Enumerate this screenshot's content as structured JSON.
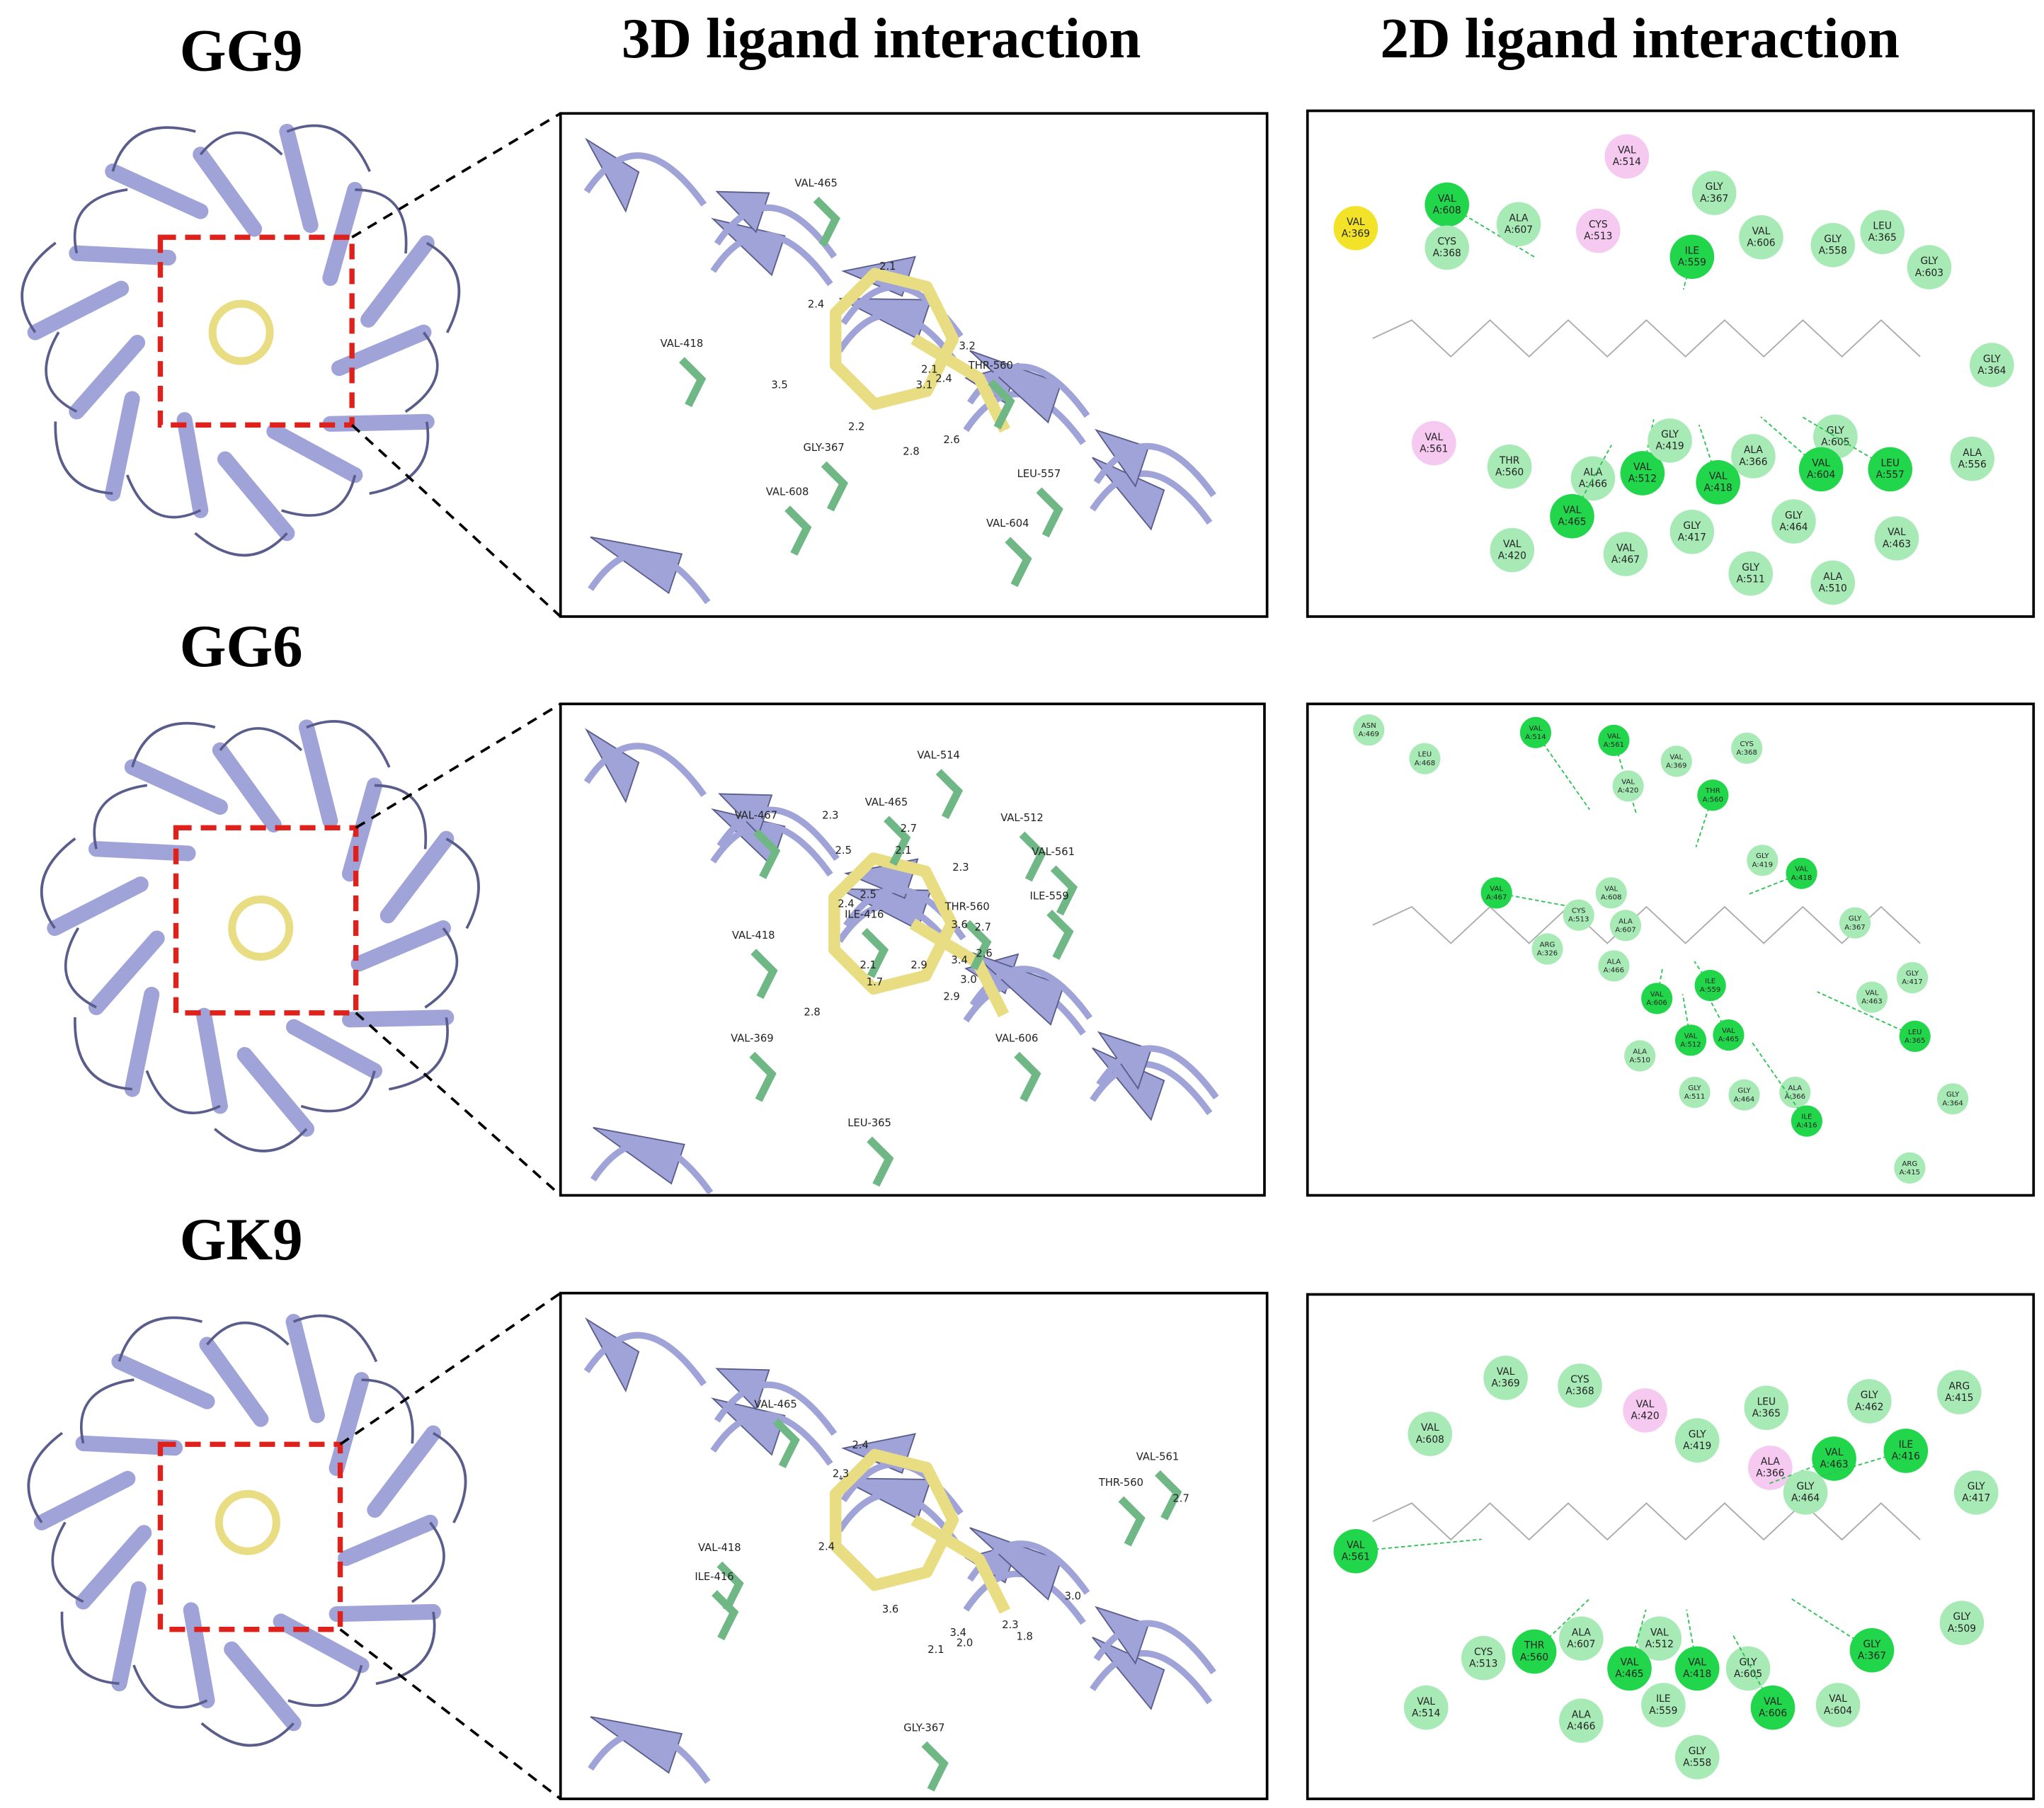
{
  "headers": [
    "3D ligand interaction",
    "2D ligand interaction"
  ],
  "rows": [
    {
      "label": "GG9",
      "residues_3d": [
        "VAL-465",
        "VAL-418",
        "THR-560",
        "GLY-367",
        "VAL-608",
        "LEU-557",
        "VAL-604"
      ],
      "distances_3d": [
        "2.1",
        "2.4",
        "3.2",
        "2.1",
        "2.4",
        "3.1",
        "3.5",
        "2.2",
        "2.6",
        "2.8"
      ],
      "residues_2d": [
        {
          "res": "VAL",
          "pos": "A:369",
          "color": "#f2e329"
        },
        {
          "res": "VAL",
          "pos": "A:608",
          "color": "#22d64c"
        },
        {
          "res": "CYS",
          "pos": "A:368",
          "color": "#a8eab6"
        },
        {
          "res": "ALA",
          "pos": "A:607",
          "color": "#a8eab6"
        },
        {
          "res": "VAL",
          "pos": "A:514",
          "color": "#f6c9f0"
        },
        {
          "res": "CYS",
          "pos": "A:513",
          "color": "#f6c9f0"
        },
        {
          "res": "GLY",
          "pos": "A:367",
          "color": "#a8eab6"
        },
        {
          "res": "ILE",
          "pos": "A:559",
          "color": "#22d64c"
        },
        {
          "res": "VAL",
          "pos": "A:606",
          "color": "#a8eab6"
        },
        {
          "res": "GLY",
          "pos": "A:558",
          "color": "#a8eab6"
        },
        {
          "res": "LEU",
          "pos": "A:365",
          "color": "#a8eab6"
        },
        {
          "res": "GLY",
          "pos": "A:603",
          "color": "#a8eab6"
        },
        {
          "res": "GLY",
          "pos": "A:364",
          "color": "#a8eab6"
        },
        {
          "res": "VAL",
          "pos": "A:561",
          "color": "#f6c9f0"
        },
        {
          "res": "THR",
          "pos": "A:560",
          "color": "#a8eab6"
        },
        {
          "res": "ALA",
          "pos": "A:466",
          "color": "#a8eab6"
        },
        {
          "res": "VAL",
          "pos": "A:512",
          "color": "#22d64c"
        },
        {
          "res": "GLY",
          "pos": "A:419",
          "color": "#a8eab6"
        },
        {
          "res": "ALA",
          "pos": "A:366",
          "color": "#a8eab6"
        },
        {
          "res": "VAL",
          "pos": "A:418",
          "color": "#22d64c"
        },
        {
          "res": "GLY",
          "pos": "A:605",
          "color": "#a8eab6"
        },
        {
          "res": "VAL",
          "pos": "A:604",
          "color": "#22d64c"
        },
        {
          "res": "LEU",
          "pos": "A:557",
          "color": "#22d64c"
        },
        {
          "res": "ALA",
          "pos": "A:556",
          "color": "#a8eab6"
        },
        {
          "res": "VAL",
          "pos": "A:465",
          "color": "#22d64c"
        },
        {
          "res": "VAL",
          "pos": "A:420",
          "color": "#a8eab6"
        },
        {
          "res": "VAL",
          "pos": "A:467",
          "color": "#a8eab6"
        },
        {
          "res": "GLY",
          "pos": "A:417",
          "color": "#a8eab6"
        },
        {
          "res": "GLY",
          "pos": "A:464",
          "color": "#a8eab6"
        },
        {
          "res": "VAL",
          "pos": "A:463",
          "color": "#a8eab6"
        },
        {
          "res": "GLY",
          "pos": "A:511",
          "color": "#a8eab6"
        },
        {
          "res": "ALA",
          "pos": "A:510",
          "color": "#a8eab6"
        }
      ]
    },
    {
      "label": "GG6",
      "residues_3d": [
        "VAL-514",
        "VAL-465",
        "VAL-467",
        "VAL-512",
        "VAL-561",
        "THR-560",
        "ILE-559",
        "VAL-418",
        "ILE-416",
        "VAL-369",
        "VAL-606",
        "LEU-365"
      ],
      "distances_3d": [
        "2.3",
        "2.7",
        "2.5",
        "2.1",
        "2.3",
        "2.4",
        "2.5",
        "3.6",
        "2.7",
        "2.6",
        "3.4",
        "3.0",
        "2.1",
        "1.7",
        "2.9",
        "2.9",
        "2.8"
      ],
      "residues_2d": [
        {
          "res": "ASN",
          "pos": "A:469",
          "color": "#a8eab6"
        },
        {
          "res": "LEU",
          "pos": "A:468",
          "color": "#a8eab6"
        },
        {
          "res": "VAL",
          "pos": "A:514",
          "color": "#22d64c"
        },
        {
          "res": "VAL",
          "pos": "A:561",
          "color": "#22d64c"
        },
        {
          "res": "VAL",
          "pos": "A:369",
          "color": "#a8eab6"
        },
        {
          "res": "CYS",
          "pos": "A:368",
          "color": "#a8eab6"
        },
        {
          "res": "VAL",
          "pos": "A:420",
          "color": "#a8eab6"
        },
        {
          "res": "THR",
          "pos": "A:560",
          "color": "#22d64c"
        },
        {
          "res": "GLY",
          "pos": "A:419",
          "color": "#a8eab6"
        },
        {
          "res": "VAL",
          "pos": "A:418",
          "color": "#22d64c"
        },
        {
          "res": "VAL",
          "pos": "A:467",
          "color": "#22d64c"
        },
        {
          "res": "VAL",
          "pos": "A:608",
          "color": "#a8eab6"
        },
        {
          "res": "CYS",
          "pos": "A:513",
          "color": "#a8eab6"
        },
        {
          "res": "ALA",
          "pos": "A:607",
          "color": "#a8eab6"
        },
        {
          "res": "GLY",
          "pos": "A:367",
          "color": "#a8eab6"
        },
        {
          "res": "ARG",
          "pos": "A:326",
          "color": "#a8eab6"
        },
        {
          "res": "ALA",
          "pos": "A:466",
          "color": "#a8eab6"
        },
        {
          "res": "ILE",
          "pos": "A:559",
          "color": "#22d64c"
        },
        {
          "res": "VAL",
          "pos": "A:606",
          "color": "#22d64c"
        },
        {
          "res": "VAL",
          "pos": "A:463",
          "color": "#a8eab6"
        },
        {
          "res": "GLY",
          "pos": "A:417",
          "color": "#a8eab6"
        },
        {
          "res": "VAL",
          "pos": "A:512",
          "color": "#22d64c"
        },
        {
          "res": "VAL",
          "pos": "A:465",
          "color": "#22d64c"
        },
        {
          "res": "LEU",
          "pos": "A:365",
          "color": "#22d64c"
        },
        {
          "res": "ALA",
          "pos": "A:510",
          "color": "#a8eab6"
        },
        {
          "res": "GLY",
          "pos": "A:511",
          "color": "#a8eab6"
        },
        {
          "res": "GLY",
          "pos": "A:464",
          "color": "#a8eab6"
        },
        {
          "res": "ALA",
          "pos": "A:366",
          "color": "#a8eab6"
        },
        {
          "res": "ILE",
          "pos": "A:416",
          "color": "#22d64c"
        },
        {
          "res": "GLY",
          "pos": "A:364",
          "color": "#a8eab6"
        },
        {
          "res": "ARG",
          "pos": "A:415",
          "color": "#a8eab6"
        }
      ]
    },
    {
      "label": "GK9",
      "residues_3d": [
        "VAL-465",
        "VAL-561",
        "THR-560",
        "VAL-418",
        "ILE-416",
        "GLY-367"
      ],
      "distances_3d": [
        "2.4",
        "2.3",
        "2.7",
        "2.4",
        "3.0",
        "3.6",
        "3.4",
        "2.0",
        "2.1",
        "2.3",
        "1.8"
      ],
      "residues_2d": [
        {
          "res": "VAL",
          "pos": "A:369",
          "color": "#a8eab6"
        },
        {
          "res": "CYS",
          "pos": "A:368",
          "color": "#a8eab6"
        },
        {
          "res": "VAL",
          "pos": "A:420",
          "color": "#f6c9f0"
        },
        {
          "res": "LEU",
          "pos": "A:365",
          "color": "#a8eab6"
        },
        {
          "res": "GLY",
          "pos": "A:462",
          "color": "#a8eab6"
        },
        {
          "res": "ARG",
          "pos": "A:415",
          "color": "#a8eab6"
        },
        {
          "res": "VAL",
          "pos": "A:608",
          "color": "#a8eab6"
        },
        {
          "res": "GLY",
          "pos": "A:419",
          "color": "#a8eab6"
        },
        {
          "res": "ALA",
          "pos": "A:366",
          "color": "#f6c9f0"
        },
        {
          "res": "VAL",
          "pos": "A:463",
          "color": "#22d64c"
        },
        {
          "res": "ILE",
          "pos": "A:416",
          "color": "#22d64c"
        },
        {
          "res": "GLY",
          "pos": "A:464",
          "color": "#a8eab6"
        },
        {
          "res": "GLY",
          "pos": "A:417",
          "color": "#a8eab6"
        },
        {
          "res": "VAL",
          "pos": "A:561",
          "color": "#22d64c"
        },
        {
          "res": "GLY",
          "pos": "A:509",
          "color": "#a8eab6"
        },
        {
          "res": "CYS",
          "pos": "A:513",
          "color": "#a8eab6"
        },
        {
          "res": "THR",
          "pos": "A:560",
          "color": "#22d64c"
        },
        {
          "res": "ALA",
          "pos": "A:607",
          "color": "#a8eab6"
        },
        {
          "res": "VAL",
          "pos": "A:512",
          "color": "#a8eab6"
        },
        {
          "res": "VAL",
          "pos": "A:465",
          "color": "#22d64c"
        },
        {
          "res": "VAL",
          "pos": "A:418",
          "color": "#22d64c"
        },
        {
          "res": "GLY",
          "pos": "A:605",
          "color": "#a8eab6"
        },
        {
          "res": "GLY",
          "pos": "A:367",
          "color": "#22d64c"
        },
        {
          "res": "VAL",
          "pos": "A:514",
          "color": "#a8eab6"
        },
        {
          "res": "ALA",
          "pos": "A:466",
          "color": "#a8eab6"
        },
        {
          "res": "ILE",
          "pos": "A:559",
          "color": "#a8eab6"
        },
        {
          "res": "VAL",
          "pos": "A:606",
          "color": "#22d64c"
        },
        {
          "res": "VAL",
          "pos": "A:604",
          "color": "#a8eab6"
        },
        {
          "res": "GLY",
          "pos": "A:558",
          "color": "#a8eab6"
        }
      ]
    }
  ]
}
